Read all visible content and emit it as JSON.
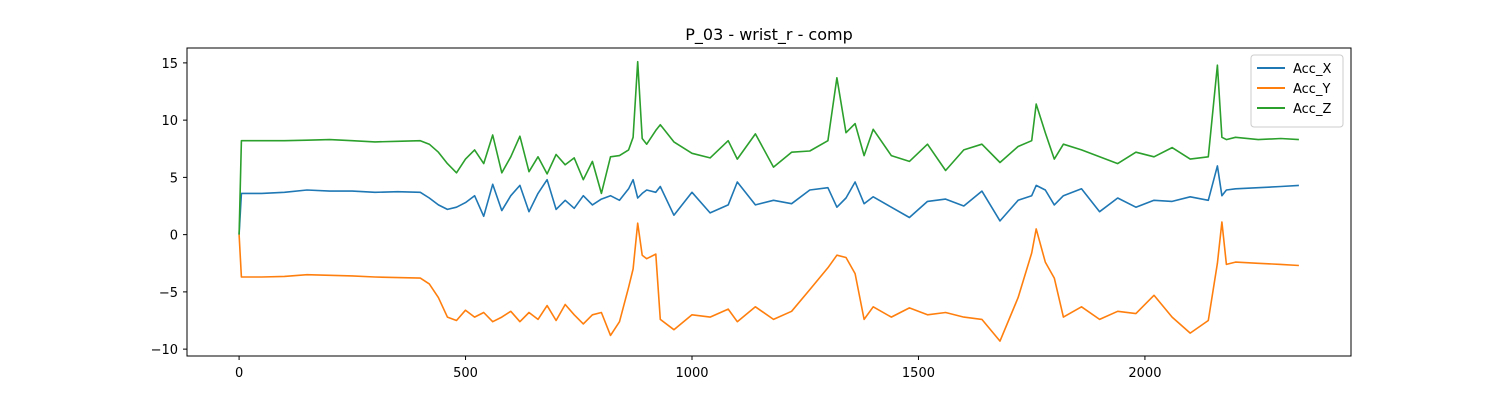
{
  "chart_data": {
    "type": "line",
    "title": "P_03 - wrist_r - comp",
    "xlabel": "",
    "ylabel": "",
    "xlim": [
      -115,
      2455
    ],
    "ylim": [
      -10.6,
      16.3
    ],
    "xticks": [
      0,
      500,
      1000,
      1500,
      2000
    ],
    "yticks": [
      -10,
      -5,
      0,
      5,
      10,
      15
    ],
    "grid": false,
    "legend_position": "top-right",
    "x": [
      0,
      5,
      50,
      100,
      150,
      200,
      250,
      300,
      350,
      400,
      420,
      440,
      460,
      480,
      500,
      520,
      540,
      560,
      580,
      600,
      620,
      640,
      660,
      680,
      700,
      720,
      740,
      760,
      780,
      800,
      820,
      840,
      860,
      870,
      880,
      890,
      900,
      920,
      930,
      960,
      1000,
      1040,
      1080,
      1100,
      1140,
      1180,
      1220,
      1260,
      1300,
      1320,
      1340,
      1360,
      1380,
      1400,
      1440,
      1480,
      1520,
      1560,
      1600,
      1640,
      1680,
      1720,
      1750,
      1760,
      1780,
      1800,
      1820,
      1860,
      1900,
      1940,
      1980,
      2020,
      2060,
      2100,
      2140,
      2160,
      2170,
      2180,
      2200,
      2250,
      2300,
      2340
    ],
    "series": [
      {
        "name": "Acc_X",
        "color": "#1f77b4",
        "values": [
          0.0,
          3.6,
          3.6,
          3.7,
          3.9,
          3.8,
          3.8,
          3.7,
          3.75,
          3.7,
          3.2,
          2.6,
          2.2,
          2.4,
          2.8,
          3.4,
          1.6,
          4.4,
          2.1,
          3.4,
          4.3,
          2.0,
          3.6,
          4.8,
          2.2,
          3.0,
          2.3,
          3.4,
          2.6,
          3.1,
          3.4,
          3.0,
          4.0,
          4.8,
          3.2,
          3.6,
          3.9,
          3.7,
          4.2,
          1.7,
          3.7,
          1.9,
          2.6,
          4.6,
          2.6,
          3.0,
          2.7,
          3.9,
          4.1,
          2.4,
          3.2,
          4.6,
          2.7,
          3.3,
          2.4,
          1.5,
          2.9,
          3.1,
          2.5,
          3.8,
          1.2,
          3.0,
          3.4,
          4.3,
          3.9,
          2.6,
          3.4,
          4.0,
          2.0,
          3.2,
          2.4,
          3.0,
          2.9,
          3.3,
          3.0,
          6.0,
          3.4,
          3.9,
          4.0,
          4.1,
          4.2,
          4.3
        ]
      },
      {
        "name": "Acc_Y",
        "color": "#ff7f0e",
        "values": [
          0.0,
          -3.7,
          -3.7,
          -3.65,
          -3.5,
          -3.55,
          -3.6,
          -3.7,
          -3.75,
          -3.8,
          -4.3,
          -5.5,
          -7.2,
          -7.5,
          -6.6,
          -7.2,
          -6.8,
          -7.6,
          -7.2,
          -6.7,
          -7.6,
          -6.8,
          -7.4,
          -6.2,
          -7.5,
          -6.1,
          -7.0,
          -7.8,
          -7.0,
          -6.8,
          -8.8,
          -7.6,
          -4.6,
          -3.0,
          1.0,
          -1.8,
          -2.1,
          -1.7,
          -7.4,
          -8.3,
          -7.0,
          -7.2,
          -6.5,
          -7.6,
          -6.3,
          -7.4,
          -6.7,
          -4.8,
          -2.9,
          -1.8,
          -2.0,
          -3.4,
          -7.4,
          -6.3,
          -7.2,
          -6.4,
          -7.0,
          -6.8,
          -7.2,
          -7.4,
          -9.3,
          -5.5,
          -1.6,
          0.5,
          -2.4,
          -3.8,
          -7.2,
          -6.3,
          -7.4,
          -6.7,
          -6.9,
          -5.3,
          -7.2,
          -8.6,
          -7.5,
          -2.5,
          1.1,
          -2.6,
          -2.4,
          -2.5,
          -2.6,
          -2.7
        ]
      },
      {
        "name": "Acc_Z",
        "color": "#2ca02c",
        "values": [
          0.0,
          8.2,
          8.2,
          8.2,
          8.25,
          8.3,
          8.2,
          8.1,
          8.15,
          8.2,
          7.9,
          7.2,
          6.2,
          5.4,
          6.6,
          7.4,
          6.2,
          8.7,
          5.4,
          6.8,
          8.6,
          5.5,
          6.8,
          5.3,
          7.0,
          6.1,
          6.7,
          4.8,
          6.4,
          3.6,
          6.8,
          6.9,
          7.4,
          8.5,
          15.1,
          8.4,
          7.9,
          9.1,
          9.6,
          8.1,
          7.1,
          6.7,
          8.2,
          6.6,
          8.8,
          5.9,
          7.2,
          7.3,
          8.2,
          13.7,
          8.9,
          9.7,
          6.9,
          9.2,
          6.9,
          6.4,
          7.9,
          5.6,
          7.4,
          7.9,
          6.3,
          7.7,
          8.2,
          11.4,
          8.9,
          6.6,
          7.9,
          7.4,
          6.8,
          6.2,
          7.2,
          6.8,
          7.6,
          6.6,
          6.8,
          14.8,
          8.5,
          8.3,
          8.5,
          8.3,
          8.4,
          8.3
        ]
      }
    ]
  }
}
